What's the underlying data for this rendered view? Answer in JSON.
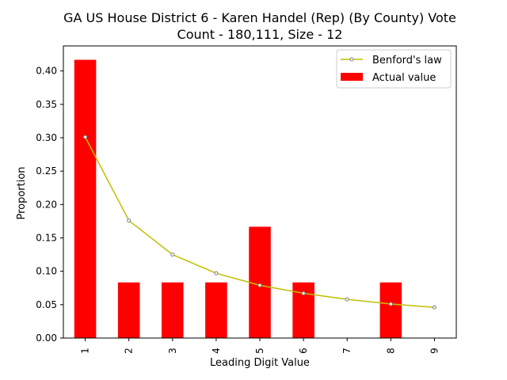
{
  "chart_data": {
    "type": "bar",
    "title_line1": "GA US House District 6 - Karen Handel (Rep) (By County) Vote",
    "title_line2": "Count - 180,111, Size - 12",
    "xlabel": "Leading Digit Value",
    "ylabel": "Proportion",
    "categories": [
      "1",
      "2",
      "3",
      "4",
      "5",
      "6",
      "7",
      "8",
      "9"
    ],
    "ylim": [
      0,
      0.4375
    ],
    "yticks": [
      "0.00",
      "0.05",
      "0.10",
      "0.15",
      "0.20",
      "0.25",
      "0.30",
      "0.35",
      "0.40"
    ],
    "grid": false,
    "legend_position": "top-right",
    "series": [
      {
        "name": "Benford's law",
        "kind": "line",
        "color": "#bfbf00",
        "marker_color": "#808080",
        "values": [
          0.301,
          0.176,
          0.125,
          0.097,
          0.079,
          0.067,
          0.058,
          0.051,
          0.046
        ]
      },
      {
        "name": "Actual value",
        "kind": "bar",
        "color": "#ff0000",
        "values": [
          0.4167,
          0.0833,
          0.0833,
          0.0833,
          0.1667,
          0.0833,
          0.0,
          0.0833,
          0.0
        ]
      }
    ]
  }
}
